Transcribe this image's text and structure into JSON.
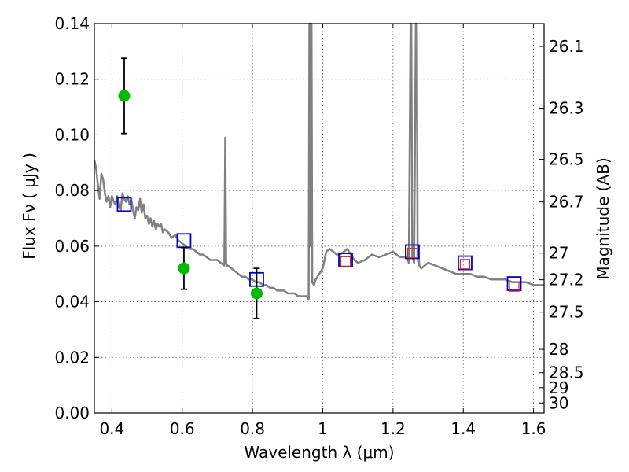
{
  "chart_data": {
    "type": "scatter",
    "title": "",
    "xlabel": "Wavelength  λ (μm)",
    "ylabel": "Flux  Fν  ( μJy )",
    "ylabel_right": "Magnitude (AB)",
    "xlim": [
      0.35,
      1.63
    ],
    "ylim": [
      0.0,
      0.14
    ],
    "grid": true,
    "x_ticks": [
      0.4,
      0.6,
      0.8,
      1.0,
      1.2,
      1.4,
      1.6
    ],
    "x_tick_labels": [
      "0.4",
      "0.6",
      "0.8",
      "1",
      "1.2",
      "1.4",
      "1.6"
    ],
    "y_ticks": [
      0.0,
      0.02,
      0.04,
      0.06,
      0.08,
      0.1,
      0.12,
      0.14
    ],
    "y_tick_labels": [
      "0.00",
      "0.02",
      "0.04",
      "0.06",
      "0.08",
      "0.10",
      "0.12",
      "0.14"
    ],
    "right_ticks": [
      {
        "label": "26.1",
        "flux": 0.1318
      },
      {
        "label": "26.3",
        "flux": 0.1096
      },
      {
        "label": "26.5",
        "flux": 0.0912
      },
      {
        "label": "26.7",
        "flux": 0.0759
      },
      {
        "label": "27",
        "flux": 0.0575
      },
      {
        "label": "27.2",
        "flux": 0.0479
      },
      {
        "label": "27.5",
        "flux": 0.0363
      },
      {
        "label": "28",
        "flux": 0.0229
      },
      {
        "label": "28.5",
        "flux": 0.0145
      },
      {
        "label": "29",
        "flux": 0.0091
      },
      {
        "label": "30",
        "flux": 0.0036
      }
    ],
    "colors": {
      "sed": "#808080",
      "observed": "#00bb00",
      "model_blue": "#0000cc",
      "model_red": "#dd2222",
      "errorbar": "#000000",
      "grid": "#555555"
    },
    "sed_model": {
      "name": "",
      "x": [
        0.35,
        0.355,
        0.36,
        0.365,
        0.37,
        0.375,
        0.38,
        0.385,
        0.39,
        0.395,
        0.4,
        0.405,
        0.41,
        0.415,
        0.42,
        0.425,
        0.43,
        0.435,
        0.44,
        0.445,
        0.45,
        0.455,
        0.46,
        0.465,
        0.47,
        0.475,
        0.48,
        0.485,
        0.49,
        0.495,
        0.5,
        0.505,
        0.51,
        0.515,
        0.52,
        0.525,
        0.53,
        0.535,
        0.54,
        0.545,
        0.55,
        0.56,
        0.57,
        0.58,
        0.59,
        0.6,
        0.61,
        0.62,
        0.63,
        0.64,
        0.65,
        0.66,
        0.67,
        0.68,
        0.69,
        0.7,
        0.71,
        0.72,
        0.7225,
        0.725,
        0.7275,
        0.73,
        0.74,
        0.75,
        0.76,
        0.77,
        0.78,
        0.79,
        0.8,
        0.81,
        0.82,
        0.83,
        0.84,
        0.85,
        0.86,
        0.87,
        0.88,
        0.89,
        0.9,
        0.91,
        0.92,
        0.93,
        0.94,
        0.95,
        0.955,
        0.958,
        0.96,
        0.962,
        0.964,
        0.966,
        0.968,
        0.97,
        0.975,
        0.98,
        0.99,
        1.0,
        1.01,
        1.02,
        1.03,
        1.04,
        1.05,
        1.06,
        1.07,
        1.08,
        1.09,
        1.1,
        1.12,
        1.14,
        1.16,
        1.18,
        1.2,
        1.22,
        1.24,
        1.245,
        1.25,
        1.252,
        1.255,
        1.26,
        1.265,
        1.268,
        1.27,
        1.275,
        1.28,
        1.3,
        1.32,
        1.34,
        1.36,
        1.38,
        1.4,
        1.42,
        1.44,
        1.46,
        1.48,
        1.5,
        1.52,
        1.54,
        1.56,
        1.58,
        1.6,
        1.63
      ],
      "y": [
        0.091,
        0.088,
        0.082,
        0.077,
        0.086,
        0.084,
        0.079,
        0.076,
        0.078,
        0.074,
        0.078,
        0.076,
        0.075,
        0.078,
        0.074,
        0.073,
        0.079,
        0.077,
        0.076,
        0.078,
        0.075,
        0.077,
        0.073,
        0.07,
        0.074,
        0.073,
        0.077,
        0.072,
        0.075,
        0.07,
        0.071,
        0.068,
        0.07,
        0.067,
        0.069,
        0.066,
        0.068,
        0.067,
        0.068,
        0.065,
        0.066,
        0.065,
        0.063,
        0.064,
        0.062,
        0.061,
        0.06,
        0.059,
        0.059,
        0.058,
        0.057,
        0.057,
        0.056,
        0.055,
        0.055,
        0.055,
        0.054,
        0.053,
        0.099,
        0.054,
        0.053,
        0.053,
        0.052,
        0.051,
        0.05,
        0.049,
        0.049,
        0.048,
        0.048,
        0.047,
        0.047,
        0.046,
        0.046,
        0.045,
        0.045,
        0.044,
        0.044,
        0.044,
        0.043,
        0.043,
        0.043,
        0.042,
        0.042,
        0.042,
        0.042,
        0.041,
        0.041,
        0.14,
        0.14,
        0.06,
        0.14,
        0.047,
        0.046,
        0.048,
        0.05,
        0.052,
        0.058,
        0.059,
        0.058,
        0.057,
        0.057,
        0.058,
        0.059,
        0.057,
        0.055,
        0.054,
        0.055,
        0.057,
        0.056,
        0.057,
        0.058,
        0.056,
        0.056,
        0.054,
        0.14,
        0.14,
        0.056,
        0.054,
        0.14,
        0.14,
        0.06,
        0.053,
        0.052,
        0.054,
        0.053,
        0.052,
        0.051,
        0.05,
        0.05,
        0.05,
        0.049,
        0.049,
        0.048,
        0.048,
        0.048,
        0.047,
        0.047,
        0.047,
        0.046,
        0.046
      ]
    },
    "observed": {
      "name": "",
      "x": [
        0.435,
        0.605,
        0.812
      ],
      "y": [
        0.114,
        0.052,
        0.043
      ],
      "yerr_low": [
        0.1005,
        0.0445,
        0.034
      ],
      "yerr_high": [
        0.1275,
        0.0595,
        0.052
      ]
    },
    "model_fluxes_blue": {
      "name": "",
      "x": [
        0.435,
        0.605,
        0.812,
        1.065,
        1.255,
        1.405,
        1.545
      ],
      "y": [
        0.075,
        0.062,
        0.048,
        0.055,
        0.058,
        0.054,
        0.0465
      ]
    },
    "model_fluxes_red": {
      "name": "",
      "x": [
        1.065,
        1.255,
        1.405,
        1.545
      ],
      "y": [
        0.0545,
        0.0575,
        0.0535,
        0.0455
      ]
    }
  }
}
